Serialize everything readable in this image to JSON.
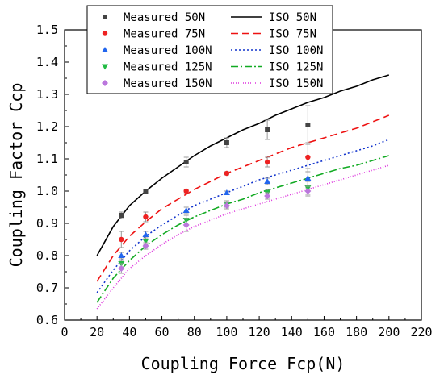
{
  "chart_data": {
    "type": "scatter",
    "xlabel": "Coupling Force Fcp(N)",
    "ylabel": "Coupling Factor Ccp",
    "xlim": [
      0,
      220
    ],
    "ylim": [
      0.6,
      1.5
    ],
    "xticks": [
      0,
      20,
      40,
      60,
      80,
      100,
      120,
      140,
      160,
      180,
      200,
      220
    ],
    "yticks": [
      0.6,
      0.7,
      0.8,
      0.9,
      1.0,
      1.1,
      1.2,
      1.3,
      1.4,
      1.5
    ],
    "grid": false,
    "legend_position": "top-left",
    "measured_series": [
      {
        "name": "Measured 50N",
        "color": "#444444",
        "marker": "square",
        "x": [
          35,
          50,
          75,
          100,
          125,
          150
        ],
        "y": [
          0.925,
          1.0,
          1.09,
          1.15,
          1.19,
          1.205
        ],
        "err": [
          0.01,
          0.005,
          0.015,
          0.015,
          0.03,
          0.06
        ]
      },
      {
        "name": "Measured 75N",
        "color": "#ee2222",
        "marker": "circle",
        "x": [
          35,
          50,
          75,
          100,
          125,
          150
        ],
        "y": [
          0.85,
          0.92,
          1.0,
          1.055,
          1.09,
          1.105
        ],
        "err": [
          0.025,
          0.015,
          0.005,
          0.005,
          0.015,
          0.045
        ]
      },
      {
        "name": "Measured 100N",
        "color": "#2266ee",
        "marker": "triangle-up",
        "x": [
          35,
          50,
          75,
          100,
          125,
          150
        ],
        "y": [
          0.8,
          0.865,
          0.94,
          0.995,
          1.03,
          1.04
        ],
        "err": [
          0.01,
          0.01,
          0.01,
          0.005,
          0.01,
          0.03
        ]
      },
      {
        "name": "Measured 125N",
        "color": "#22bb44",
        "marker": "triangle-down",
        "x": [
          35,
          50,
          75,
          100,
          125,
          150
        ],
        "y": [
          0.775,
          0.845,
          0.91,
          0.96,
          0.995,
          1.01
        ],
        "err": [
          0.01,
          0.01,
          0.015,
          0.01,
          0.01,
          0.02
        ]
      },
      {
        "name": "Measured 150N",
        "color": "#bb77dd",
        "marker": "diamond",
        "x": [
          35,
          50,
          75,
          100,
          125,
          150
        ],
        "y": [
          0.76,
          0.83,
          0.895,
          0.955,
          0.985,
          1.0
        ],
        "err": [
          0.015,
          0.01,
          0.02,
          0.01,
          0.01,
          0.015
        ]
      }
    ],
    "iso_series": [
      {
        "name": "ISO 50N",
        "color": "#000000",
        "dash": "solid",
        "x": [
          20,
          30,
          40,
          50,
          60,
          70,
          80,
          90,
          100,
          110,
          120,
          130,
          140,
          150,
          160,
          170,
          180,
          190,
          200
        ],
        "y": [
          0.8,
          0.89,
          0.955,
          1.0,
          1.04,
          1.075,
          1.11,
          1.14,
          1.165,
          1.19,
          1.21,
          1.235,
          1.255,
          1.275,
          1.29,
          1.31,
          1.325,
          1.345,
          1.36
        ]
      },
      {
        "name": "ISO 75N",
        "color": "#ee1111",
        "dash": "dashed",
        "x": [
          20,
          30,
          40,
          50,
          60,
          70,
          80,
          90,
          100,
          110,
          120,
          130,
          140,
          150,
          160,
          170,
          180,
          190,
          200
        ],
        "y": [
          0.72,
          0.8,
          0.86,
          0.905,
          0.945,
          0.975,
          1.005,
          1.03,
          1.055,
          1.075,
          1.095,
          1.115,
          1.135,
          1.15,
          1.165,
          1.18,
          1.195,
          1.215,
          1.235
        ]
      },
      {
        "name": "ISO 100N",
        "color": "#1133cc",
        "dash": "dotted",
        "x": [
          20,
          30,
          40,
          50,
          60,
          70,
          80,
          90,
          100,
          110,
          120,
          130,
          140,
          150,
          160,
          170,
          180,
          190,
          200
        ],
        "y": [
          0.685,
          0.755,
          0.815,
          0.86,
          0.895,
          0.925,
          0.955,
          0.975,
          0.995,
          1.015,
          1.035,
          1.05,
          1.065,
          1.08,
          1.095,
          1.11,
          1.125,
          1.14,
          1.16
        ]
      },
      {
        "name": "ISO 125N",
        "color": "#11aa22",
        "dash": "dashdot",
        "x": [
          20,
          30,
          40,
          50,
          60,
          70,
          80,
          90,
          100,
          110,
          120,
          130,
          140,
          150,
          160,
          170,
          180,
          190,
          200
        ],
        "y": [
          0.655,
          0.73,
          0.785,
          0.83,
          0.865,
          0.895,
          0.92,
          0.94,
          0.96,
          0.975,
          0.995,
          1.01,
          1.025,
          1.04,
          1.055,
          1.07,
          1.08,
          1.095,
          1.11
        ]
      },
      {
        "name": "ISO 150N",
        "color": "#dd33dd",
        "dash": "finedot",
        "x": [
          20,
          30,
          40,
          50,
          60,
          70,
          80,
          90,
          100,
          110,
          120,
          130,
          140,
          150,
          160,
          170,
          180,
          190,
          200
        ],
        "y": [
          0.635,
          0.7,
          0.76,
          0.8,
          0.835,
          0.865,
          0.89,
          0.91,
          0.93,
          0.945,
          0.96,
          0.975,
          0.99,
          1.005,
          1.02,
          1.035,
          1.05,
          1.065,
          1.08
        ]
      }
    ]
  }
}
